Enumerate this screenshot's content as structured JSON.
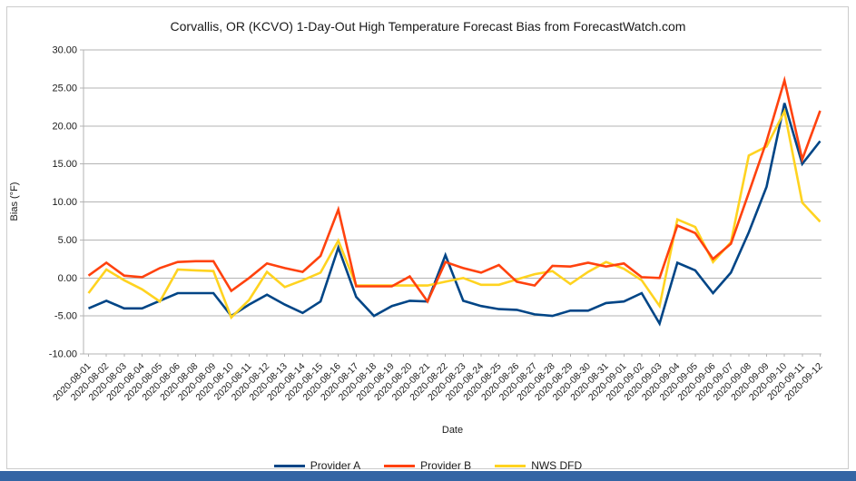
{
  "chart_title": "Corvallis, OR (KCVO) 1-Day-Out High Temperature Forecast Bias from ForecastWatch.com",
  "axes": {
    "y_label": "Bias (°F)",
    "x_label": "Date",
    "y_tick_labels": [
      "30.00",
      "25.00",
      "20.00",
      "15.00",
      "10.00",
      "5.00",
      "0.00",
      "-5.00",
      "-10.00"
    ]
  },
  "colors": {
    "provider_a": "#004586",
    "provider_b": "#ff420e",
    "nws_dfd": "#ffd320",
    "grid": "#b3b3b3",
    "axis": "#b3b3b3",
    "text": "#1a1a1a",
    "frame_border": "#cccccc",
    "taskbar": "#3465a4"
  },
  "chart_data": {
    "type": "line",
    "title": "Corvallis, OR (KCVO) 1-Day-Out High Temperature Forecast Bias from ForecastWatch.com",
    "xlabel": "Date",
    "ylabel": "Bias (°F)",
    "ylim": [
      -10,
      30
    ],
    "y_tick_step": 5,
    "grid": "horizontal",
    "legend_position": "bottom",
    "categories": [
      "2020-08-01",
      "2020-08-02",
      "2020-08-03",
      "2020-08-04",
      "2020-08-05",
      "2020-08-06",
      "2020-08-08",
      "2020-08-09",
      "2020-08-10",
      "2020-08-11",
      "2020-08-12",
      "2020-08-13",
      "2020-08-14",
      "2020-08-15",
      "2020-08-16",
      "2020-08-17",
      "2020-08-18",
      "2020-08-19",
      "2020-08-20",
      "2020-08-21",
      "2020-08-22",
      "2020-08-23",
      "2020-08-24",
      "2020-08-25",
      "2020-08-26",
      "2020-08-27",
      "2020-08-28",
      "2020-08-29",
      "2020-08-30",
      "2020-08-31",
      "2020-09-01",
      "2020-09-02",
      "2020-09-03",
      "2020-09-04",
      "2020-09-05",
      "2020-09-06",
      "2020-09-07",
      "2020-09-08",
      "2020-09-09",
      "2020-09-10",
      "2020-09-11",
      "2020-09-12"
    ],
    "series": [
      {
        "name": "Provider A",
        "color": "#004586",
        "values": [
          -4.0,
          -3.0,
          -4.0,
          -4.0,
          -3.0,
          -2.0,
          -2.0,
          -2.0,
          -5.0,
          -3.5,
          -2.2,
          -3.5,
          -4.6,
          -3.1,
          4.0,
          -2.5,
          -5.0,
          -3.7,
          -3.0,
          -3.1,
          3.0,
          -3.0,
          -3.7,
          -4.1,
          -4.2,
          -4.8,
          -5.0,
          -4.3,
          -4.3,
          -3.3,
          -3.1,
          -2.0,
          -6.0,
          2.0,
          1.0,
          -2.0,
          0.7,
          6.0,
          12.0,
          23.0,
          15.0,
          18.0
        ]
      },
      {
        "name": "Provider B",
        "color": "#ff420e",
        "values": [
          0.3,
          2.0,
          0.3,
          0.1,
          1.3,
          2.1,
          2.2,
          2.2,
          -1.7,
          0.0,
          1.9,
          1.3,
          0.8,
          2.9,
          9.0,
          -1.1,
          -1.1,
          -1.1,
          0.2,
          -3.1,
          2.1,
          1.3,
          0.7,
          1.7,
          -0.5,
          -1.0,
          1.6,
          1.5,
          2.0,
          1.5,
          1.9,
          0.1,
          0.0,
          6.9,
          5.9,
          2.5,
          4.5,
          11.2,
          18.0,
          26.0,
          15.6,
          22.0
        ]
      },
      {
        "name": "NWS DFD",
        "color": "#ffd320",
        "values": [
          -2.0,
          1.1,
          -0.3,
          -1.5,
          -3.1,
          1.1,
          1.0,
          0.9,
          -5.2,
          -2.9,
          0.8,
          -1.2,
          -0.3,
          0.7,
          4.9,
          -1.0,
          -1.0,
          -1.0,
          -1.0,
          -1.0,
          -0.5,
          0.0,
          -0.9,
          -0.9,
          -0.2,
          0.5,
          0.9,
          -0.8,
          0.8,
          2.1,
          1.2,
          -0.3,
          -3.7,
          7.7,
          6.7,
          2.1,
          4.7,
          16.1,
          17.3,
          21.9,
          9.9,
          7.4
        ]
      }
    ]
  }
}
